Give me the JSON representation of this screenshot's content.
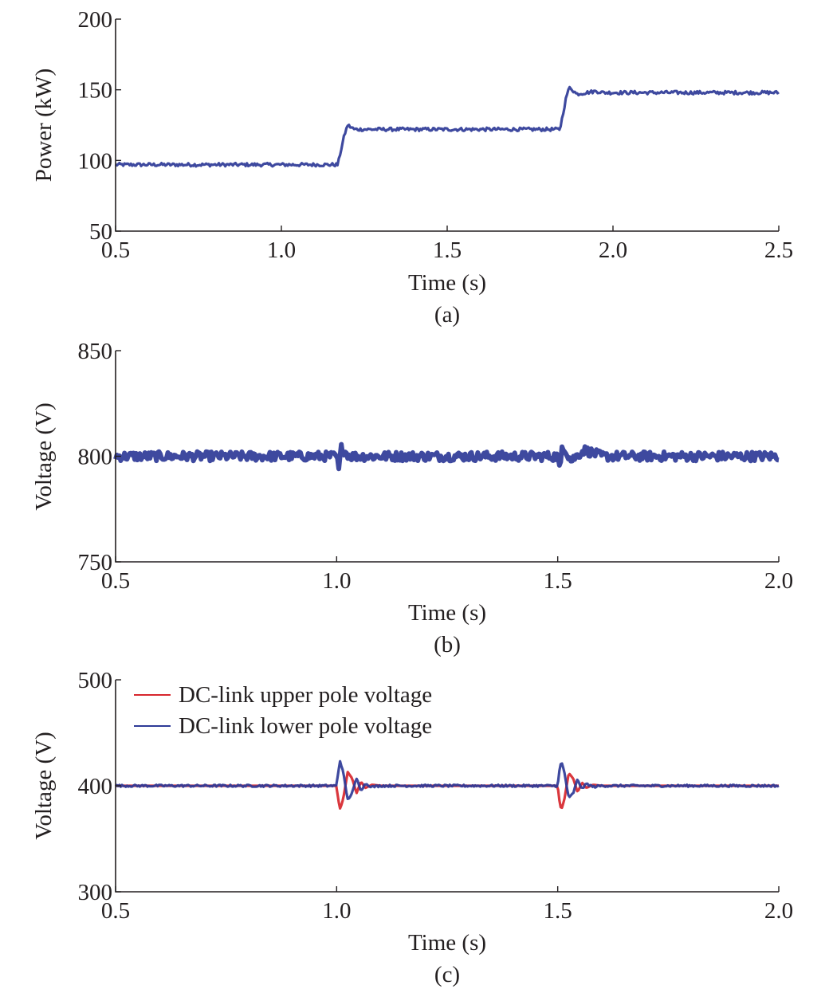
{
  "chart_data": [
    {
      "type": "line",
      "panel_label": "(a)",
      "title": "",
      "xlabel": "Time (s)",
      "ylabel": "Power (kW)",
      "xlim": [
        0.5,
        2.5
      ],
      "ylim": [
        50,
        200
      ],
      "xticks": [
        0.5,
        1.0,
        1.5,
        2.0,
        2.5
      ],
      "xtick_labels": [
        "0.5",
        "1.0",
        "1.5",
        "2.0",
        "2.5"
      ],
      "yticks": [
        50,
        100,
        150,
        200
      ],
      "ytick_labels": [
        "50",
        "100",
        "150",
        "200"
      ],
      "grid": false,
      "series": [
        {
          "color": "#2e3a97",
          "x": [
            0.5,
            1.17,
            1.19,
            1.2,
            1.22,
            1.84,
            1.86,
            1.87,
            1.89,
            1.95,
            1.97,
            2.5
          ],
          "y": [
            97,
            97,
            118,
            125,
            122,
            122,
            146,
            152,
            147,
            149,
            148,
            148
          ],
          "noise": 1.2
        }
      ]
    },
    {
      "type": "line",
      "panel_label": "(b)",
      "title": "",
      "xlabel": "Time (s)",
      "ylabel": "Voltage (V)",
      "xlim": [
        0.5,
        2.0
      ],
      "ylim": [
        750,
        850
      ],
      "xticks": [
        0.5,
        1.0,
        1.5,
        2.0
      ],
      "xtick_labels": [
        "0.5",
        "1.0",
        "1.5",
        "2.0"
      ],
      "yticks": [
        750,
        800,
        850
      ],
      "ytick_labels": [
        "750",
        "800",
        "850"
      ],
      "grid": false,
      "series": [
        {
          "color": "#2e3a97",
          "x": [
            0.5,
            1.0,
            1.005,
            1.01,
            1.03,
            1.5,
            1.505,
            1.51,
            1.53,
            1.56,
            1.6,
            2.0
          ],
          "y": [
            800,
            800,
            793,
            804,
            800,
            800,
            792,
            806,
            798,
            803,
            800,
            800
          ],
          "noise": 2.2
        }
      ]
    },
    {
      "type": "line",
      "panel_label": "(c)",
      "title": "",
      "xlabel": "Time (s)",
      "ylabel": "Voltage (V)",
      "xlim": [
        0.5,
        2.0
      ],
      "ylim": [
        300,
        500
      ],
      "xticks": [
        0.5,
        1.0,
        1.5,
        2.0
      ],
      "xtick_labels": [
        "0.5",
        "1.0",
        "1.5",
        "2.0"
      ],
      "yticks": [
        300,
        400,
        500
      ],
      "ytick_labels": [
        "300",
        "400",
        "500"
      ],
      "grid": false,
      "legend_position": "top-left",
      "series": [
        {
          "name": "DC-link upper pole voltage",
          "color": "#d7262d",
          "x": [
            0.5,
            1.0,
            1.003,
            1.008,
            1.015,
            1.025,
            1.035,
            1.045,
            1.055,
            1.065,
            1.08,
            1.1,
            1.5,
            1.503,
            1.508,
            1.515,
            1.525,
            1.535,
            1.545,
            1.555,
            1.565,
            1.58,
            1.6,
            2.0
          ],
          "y": [
            400,
            400,
            388,
            378,
            388,
            413,
            407,
            393,
            404,
            398,
            401,
            400,
            400,
            388,
            377,
            387,
            412,
            407,
            394,
            403,
            398,
            401,
            400,
            400
          ]
        },
        {
          "name": "DC-link lower pole voltage",
          "color": "#2e3a97",
          "x": [
            0.5,
            1.0,
            1.003,
            1.008,
            1.015,
            1.025,
            1.035,
            1.045,
            1.055,
            1.065,
            1.08,
            1.1,
            1.5,
            1.503,
            1.508,
            1.515,
            1.525,
            1.535,
            1.545,
            1.555,
            1.565,
            1.58,
            1.6,
            2.0
          ],
          "y": [
            400,
            400,
            412,
            424,
            412,
            387,
            393,
            407,
            396,
            402,
            399,
            400,
            400,
            412,
            423,
            413,
            388,
            393,
            406,
            397,
            402,
            399,
            400,
            400
          ],
          "noise": 1.0
        }
      ]
    }
  ]
}
